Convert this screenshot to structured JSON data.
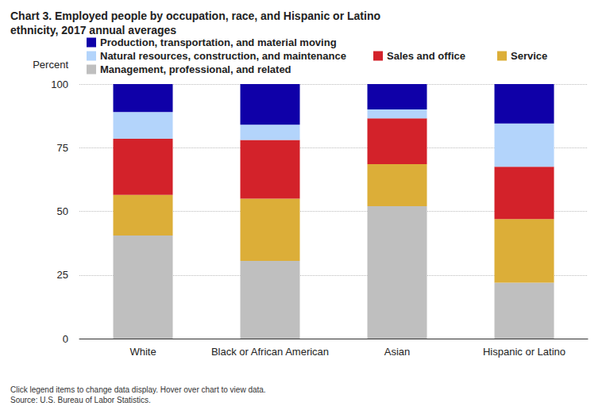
{
  "chart_data": {
    "type": "bar",
    "title": "Chart 3. Employed people by occupation, race, and Hispanic or Latino ethnicity, 2017 annual averages",
    "ylabel": "Percent",
    "categories": [
      "White",
      "Black or African American",
      "Asian",
      "Hispanic or Latino"
    ],
    "series": [
      {
        "name": "Management, professional, and related",
        "color": "#bfbfbf",
        "values": [
          40.5,
          30.5,
          52,
          22
        ]
      },
      {
        "name": "Service",
        "color": "#dcae38",
        "values": [
          16,
          24.5,
          16.5,
          25
        ]
      },
      {
        "name": "Sales and office",
        "color": "#d3222a",
        "values": [
          22,
          23,
          18,
          20.5
        ]
      },
      {
        "name": "Natural resources, construction, and maintenance",
        "color": "#b3d4fb",
        "values": [
          10.5,
          6,
          3.5,
          17
        ]
      },
      {
        "name": "Production, transportation, and material moving",
        "color": "#0f00a8",
        "values": [
          11,
          16,
          10,
          15.5
        ]
      }
    ],
    "ylim": [
      0,
      100
    ],
    "yticks": [
      0,
      25,
      50,
      75,
      100
    ],
    "stacked": true,
    "grid": true,
    "legend": "top",
    "notes": [
      "Click legend items to change data display. Hover over chart to view data.",
      "Source: U.S. Bureau of Labor Statistics."
    ]
  }
}
